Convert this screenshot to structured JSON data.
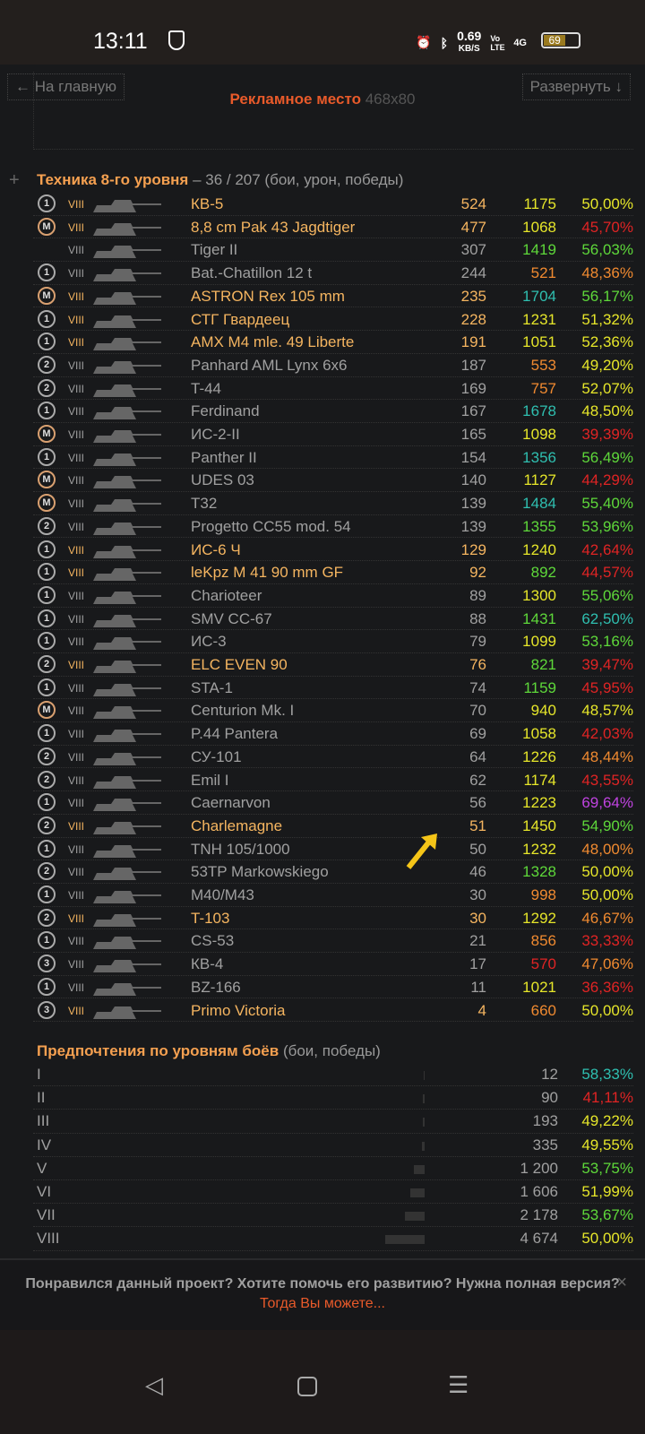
{
  "status": {
    "time": "13:11",
    "speed": "0.69",
    "speed_unit": "KB/S",
    "volte": "Vo LTE",
    "network": "4G",
    "battery": "69",
    "icons": [
      "shield-check-icon",
      "alarm-icon",
      "bluetooth-icon",
      "signal-icon",
      "battery-icon"
    ]
  },
  "nav": {
    "home": "← На главную",
    "expand": "Развернуть ↓"
  },
  "ad": {
    "label": "Рекламное место",
    "size": "468x80"
  },
  "colors": {
    "gold": "#f5b560",
    "gray": "#a0a0a0",
    "yellow": "#e6e62a",
    "green": "#5ed83a",
    "teal": "#2fbfb0",
    "orange": "#f08a30",
    "red": "#e02424",
    "purple": "#c043e0"
  },
  "vehicles": {
    "title": "Техника 8-го уровня",
    "subtitle": "– 36 / 207 (бои, урон, победы)",
    "expand": "+",
    "rows": [
      [
        "1",
        "VIII",
        "КВ-5",
        1,
        "524",
        "1175",
        "yellow",
        "50,00%",
        "yellow"
      ],
      [
        "M",
        "VIII",
        "8,8 cm Pak 43 Jagdtiger",
        1,
        "477",
        "1068",
        "yellow",
        "45,70%",
        "red"
      ],
      [
        "",
        "VIII",
        "Tiger II",
        0,
        "307",
        "1419",
        "green",
        "56,03%",
        "green"
      ],
      [
        "1",
        "VIII",
        "Bat.-Chatillon 12 t",
        0,
        "244",
        "521",
        "orange",
        "48,36%",
        "orange"
      ],
      [
        "M",
        "VIII",
        "ASTRON Rex 105 mm",
        1,
        "235",
        "1704",
        "teal",
        "56,17%",
        "green"
      ],
      [
        "1",
        "VIII",
        "СТГ Гвардеец",
        1,
        "228",
        "1231",
        "yellow",
        "51,32%",
        "yellow"
      ],
      [
        "1",
        "VIII",
        "AMX M4 mle. 49 Liberte",
        1,
        "191",
        "1051",
        "yellow",
        "52,36%",
        "yellow"
      ],
      [
        "2",
        "VIII",
        "Panhard AML Lynx 6x6",
        0,
        "187",
        "553",
        "orange",
        "49,20%",
        "yellow"
      ],
      [
        "2",
        "VIII",
        "T-44",
        0,
        "169",
        "757",
        "orange",
        "52,07%",
        "yellow"
      ],
      [
        "1",
        "VIII",
        "Ferdinand",
        0,
        "167",
        "1678",
        "teal",
        "48,50%",
        "yellow"
      ],
      [
        "M",
        "VIII",
        "ИС-2-II",
        0,
        "165",
        "1098",
        "yellow",
        "39,39%",
        "red"
      ],
      [
        "1",
        "VIII",
        "Panther II",
        0,
        "154",
        "1356",
        "teal",
        "56,49%",
        "green"
      ],
      [
        "M",
        "VIII",
        "UDES 03",
        0,
        "140",
        "1127",
        "yellow",
        "44,29%",
        "red"
      ],
      [
        "M",
        "VIII",
        "T32",
        0,
        "139",
        "1484",
        "teal",
        "55,40%",
        "green"
      ],
      [
        "2",
        "VIII",
        "Progetto CC55 mod. 54",
        0,
        "139",
        "1355",
        "green",
        "53,96%",
        "green"
      ],
      [
        "1",
        "VIII",
        "ИС-6 Ч",
        1,
        "129",
        "1240",
        "yellow",
        "42,64%",
        "red"
      ],
      [
        "1",
        "VIII",
        "leKpz M 41 90 mm GF",
        1,
        "92",
        "892",
        "green",
        "44,57%",
        "red"
      ],
      [
        "1",
        "VIII",
        "Charioteer",
        0,
        "89",
        "1300",
        "yellow",
        "55,06%",
        "green"
      ],
      [
        "1",
        "VIII",
        "SMV CC-67",
        0,
        "88",
        "1431",
        "green",
        "62,50%",
        "teal"
      ],
      [
        "1",
        "VIII",
        "ИС-3",
        0,
        "79",
        "1099",
        "yellow",
        "53,16%",
        "green"
      ],
      [
        "2",
        "VIII",
        "ELC EVEN 90",
        1,
        "76",
        "821",
        "green",
        "39,47%",
        "red"
      ],
      [
        "1",
        "VIII",
        "STA-1",
        0,
        "74",
        "1159",
        "green",
        "45,95%",
        "red"
      ],
      [
        "M",
        "VIII",
        "Centurion Mk. I",
        0,
        "70",
        "940",
        "yellow",
        "48,57%",
        "yellow"
      ],
      [
        "1",
        "VIII",
        "P.44 Pantera",
        0,
        "69",
        "1058",
        "yellow",
        "42,03%",
        "red"
      ],
      [
        "2",
        "VIII",
        "СУ-101",
        0,
        "64",
        "1226",
        "yellow",
        "48,44%",
        "orange"
      ],
      [
        "2",
        "VIII",
        "Emil I",
        0,
        "62",
        "1174",
        "yellow",
        "43,55%",
        "red"
      ],
      [
        "1",
        "VIII",
        "Caernarvon",
        0,
        "56",
        "1223",
        "yellow",
        "69,64%",
        "purple"
      ],
      [
        "2",
        "VIII",
        "Charlemagne",
        1,
        "51",
        "1450",
        "yellow",
        "54,90%",
        "green"
      ],
      [
        "1",
        "VIII",
        "TNH 105/1000",
        0,
        "50",
        "1232",
        "yellow",
        "48,00%",
        "orange"
      ],
      [
        "2",
        "VIII",
        "53TP Markowskiego",
        0,
        "46",
        "1328",
        "green",
        "50,00%",
        "yellow"
      ],
      [
        "1",
        "VIII",
        "M40/M43",
        0,
        "30",
        "998",
        "orange",
        "50,00%",
        "yellow"
      ],
      [
        "2",
        "VIII",
        "T-103",
        1,
        "30",
        "1292",
        "yellow",
        "46,67%",
        "orange"
      ],
      [
        "1",
        "VIII",
        "CS-53",
        0,
        "21",
        "856",
        "orange",
        "33,33%",
        "red"
      ],
      [
        "3",
        "VIII",
        "КВ-4",
        0,
        "17",
        "570",
        "red",
        "47,06%",
        "orange"
      ],
      [
        "1",
        "VIII",
        "BZ-166",
        0,
        "11",
        "1021",
        "yellow",
        "36,36%",
        "red"
      ],
      [
        "3",
        "VIII",
        "Primo Victoria",
        1,
        "4",
        "660",
        "orange",
        "50,00%",
        "yellow"
      ]
    ]
  },
  "levels": {
    "title": "Предпочтения по уровням боёв",
    "subtitle": "(бои, победы)",
    "rows": [
      [
        "I",
        "12",
        "58,33%",
        "teal",
        1
      ],
      [
        "II",
        "90",
        "41,11%",
        "red",
        2
      ],
      [
        "III",
        "193",
        "49,22%",
        "yellow",
        2
      ],
      [
        "IV",
        "335",
        "49,55%",
        "yellow",
        3
      ],
      [
        "V",
        "1 200",
        "53,75%",
        "green",
        12
      ],
      [
        "VI",
        "1 606",
        "51,99%",
        "yellow",
        16
      ],
      [
        "VII",
        "2 178",
        "53,67%",
        "green",
        22
      ],
      [
        "VIII",
        "4 674",
        "50,00%",
        "yellow",
        44
      ]
    ]
  },
  "footer": {
    "question": "Понравился данный проект? Хотите помочь его развитию? Нужна полная версия?",
    "link": "Тогда Вы можете...",
    "close": "×"
  }
}
